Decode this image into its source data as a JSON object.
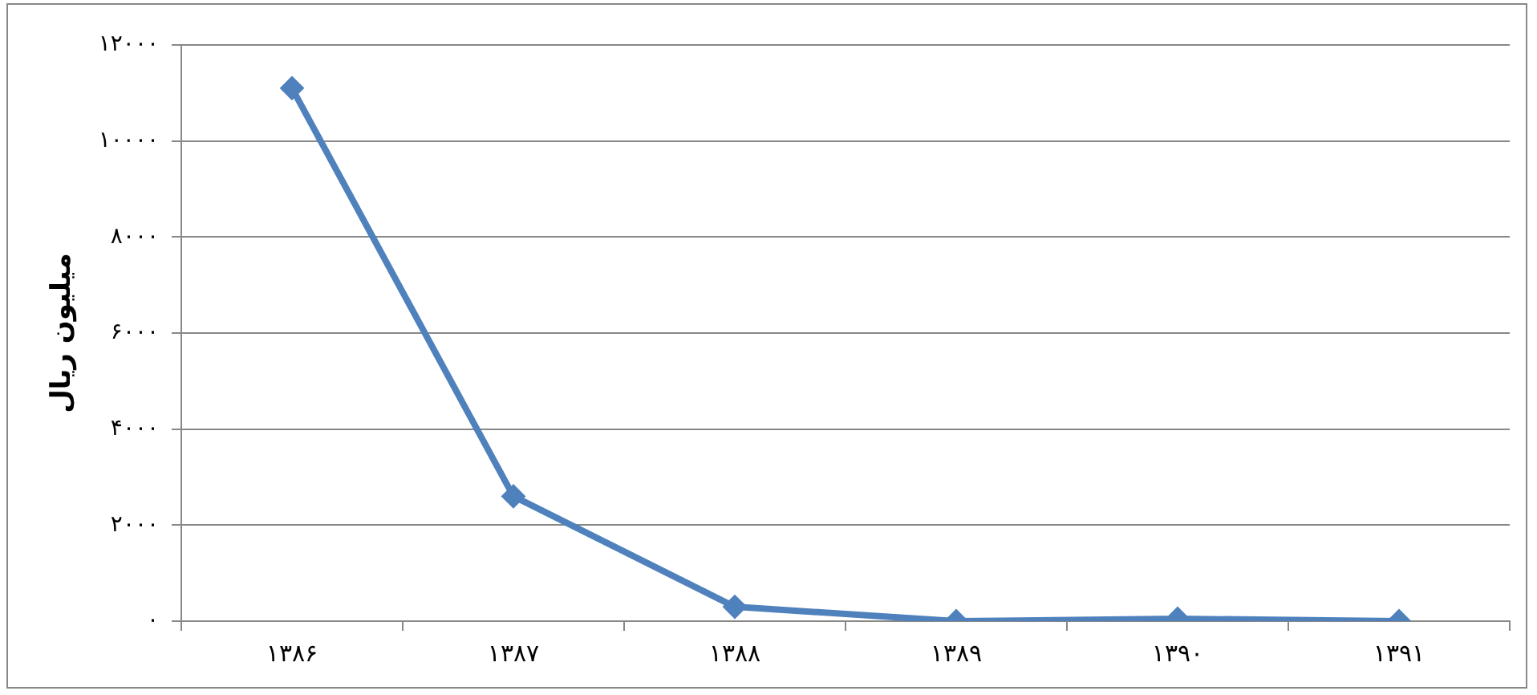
{
  "chart_data": {
    "type": "line",
    "ylabel": "میلیون ریال",
    "categories": [
      "۱۳۸۶",
      "۱۳۸۷",
      "۱۳۸۸",
      "۱۳۸۹",
      "۱۳۹۰",
      "۱۳۹۱"
    ],
    "series": [
      {
        "color": "#4f81bd",
        "values": [
          11100,
          2600,
          300,
          0,
          50,
          0
        ]
      }
    ],
    "ylim": [
      0,
      12000
    ],
    "yticks": [
      {
        "value": 0,
        "label": "۰"
      },
      {
        "value": 2000,
        "label": "۲۰۰۰"
      },
      {
        "value": 4000,
        "label": "۴۰۰۰"
      },
      {
        "value": 6000,
        "label": "۶۰۰۰"
      },
      {
        "value": 8000,
        "label": "۸۰۰۰"
      },
      {
        "value": 10000,
        "label": "۱۰۰۰۰"
      },
      {
        "value": 12000,
        "label": "۱۲۰۰۰"
      }
    ],
    "grid": "y",
    "legend": false,
    "marker": "diamond",
    "line_style": "solid"
  }
}
